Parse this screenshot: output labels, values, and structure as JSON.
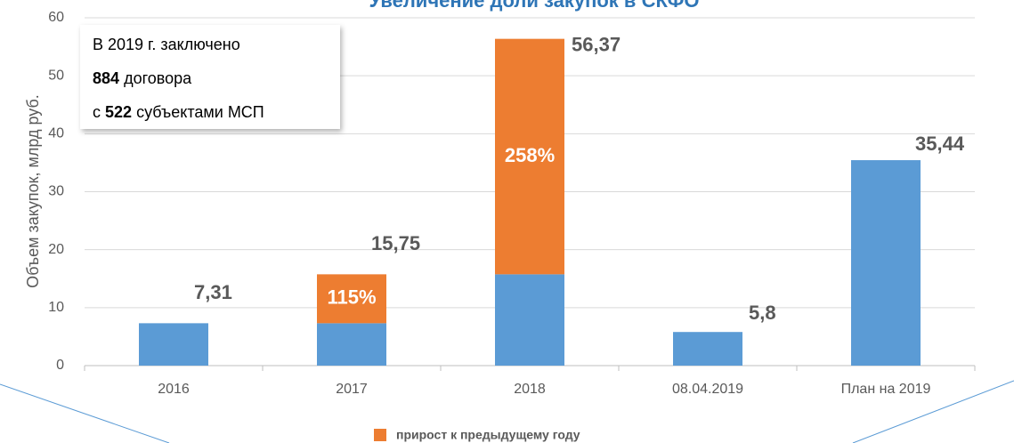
{
  "chart_data": {
    "type": "stacked_bar",
    "title": "Увеличение доли закупок в СКФО",
    "ylabel": "Объем закупок, млрд руб.",
    "categories": [
      "2016",
      "2017",
      "2018",
      "08.04.2019",
      "План на 2019"
    ],
    "series": [
      {
        "color": "#5b9bd5",
        "values": [
          7.31,
          7.31,
          15.75,
          5.8,
          35.44
        ]
      },
      {
        "name": "прирост к предыдущему году",
        "color": "#ed7d31",
        "values": [
          null,
          8.44,
          40.62,
          null,
          null
        ]
      }
    ],
    "totals": {
      "values": [
        7.31,
        15.75,
        56.37,
        5.8,
        35.44
      ],
      "value_labels": [
        "7,31",
        "15,75",
        "56,37",
        "5,8",
        "35,44"
      ]
    },
    "growth_percent": {
      "values": [
        null,
        115,
        258,
        null,
        null
      ],
      "value_labels": [
        null,
        "115%",
        "258%",
        null,
        null
      ]
    },
    "ylim": [
      0,
      60
    ],
    "yticks": [
      0,
      10,
      20,
      30,
      40,
      50,
      60
    ],
    "grid": true,
    "legend": "bottom",
    "annotation": {
      "line1": "В 2019 г. заключено",
      "contracts": 884,
      "contracts_text": "договора",
      "prefix": "с",
      "subjects": 522,
      "subjects_text": "субъектами МСП"
    }
  }
}
